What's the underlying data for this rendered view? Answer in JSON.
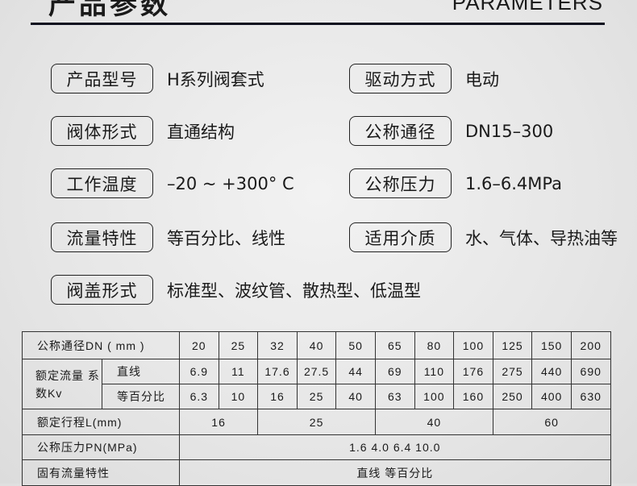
{
  "header": {
    "title": "产品参数",
    "english": "PARAMETERS"
  },
  "params": [
    {
      "label": "产品型号",
      "value": "H系列阀套式"
    },
    {
      "label": "驱动方式",
      "value": "电动"
    },
    {
      "label": "阀体形式",
      "value": "直通结构"
    },
    {
      "label": "公称通径",
      "value": "DN15–300"
    },
    {
      "label": "工作温度",
      "value": "–20 ~ +300°  C"
    },
    {
      "label": "公称压力",
      "value": "1.6–6.4MPa"
    },
    {
      "label": "流量特性",
      "value": "等百分比、线性"
    },
    {
      "label": "适用介质",
      "value": "水、气体、导热油等"
    },
    {
      "label": "阀盖形式",
      "value": "标准型、波纹管、散热型、低温型"
    }
  ],
  "table": {
    "dn_label": "公称通径DN ( mm )",
    "dn": [
      "20",
      "25",
      "32",
      "40",
      "50",
      "65",
      "80",
      "100",
      "125",
      "150",
      "200"
    ],
    "kv_label": "额定流量 系数Kv",
    "linear_label": "直线",
    "linear": [
      "6.9",
      "11",
      "17.6",
      "27.5",
      "44",
      "69",
      "110",
      "176",
      "275",
      "440",
      "690"
    ],
    "eqp_label": "等百分比",
    "eqp": [
      "6.3",
      "10",
      "16",
      "25",
      "40",
      "63",
      "100",
      "160",
      "250",
      "400",
      "630"
    ],
    "travel_label": "额定行程L(mm)",
    "travel": [
      "16",
      "25",
      "40",
      "60"
    ],
    "pn_label": "公称压力PN(MPa)",
    "pn": "1.6  4.0  6.4  10.0",
    "char_label": "固有流量特性",
    "char": "直线  等百分比"
  }
}
